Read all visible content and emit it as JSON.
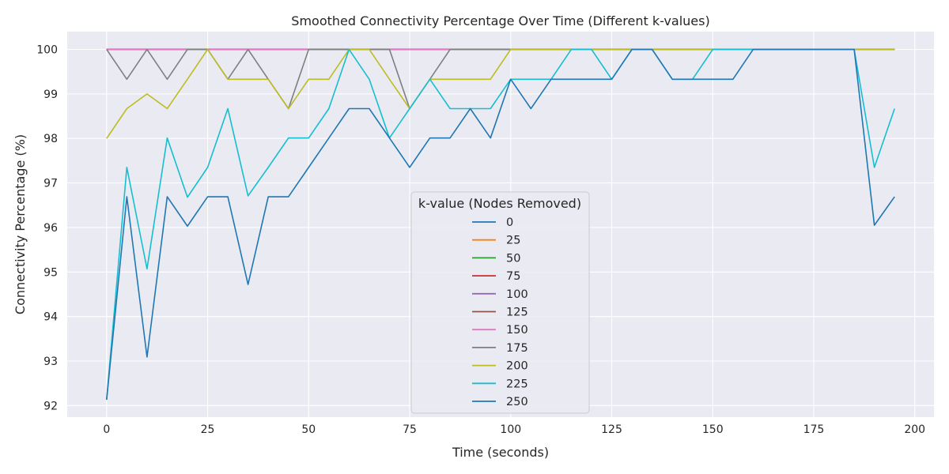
{
  "chart_data": {
    "type": "line",
    "title": "Smoothed Connectivity Percentage Over Time (Different k-values)",
    "xlabel": "Time (seconds)",
    "ylabel": "Connectivity Percentage (%)",
    "xlim": [
      -9.75,
      204.75
    ],
    "ylim": [
      91.74,
      100.4
    ],
    "xticks": [
      0,
      25,
      50,
      75,
      100,
      125,
      150,
      175,
      200
    ],
    "yticks": [
      92,
      93,
      94,
      95,
      96,
      97,
      98,
      99,
      100
    ],
    "grid": true,
    "legend": {
      "title": "k-value (Nodes Removed)",
      "placement": "lower-center"
    },
    "x": [
      0,
      5,
      10,
      15,
      20,
      25,
      30,
      35,
      40,
      45,
      50,
      55,
      60,
      65,
      70,
      75,
      80,
      85,
      90,
      95,
      100,
      105,
      110,
      115,
      120,
      125,
      130,
      135,
      140,
      145,
      150,
      155,
      160,
      165,
      170,
      175,
      180,
      185,
      190,
      195
    ],
    "series": [
      {
        "name": "0",
        "color": "#1f77b4",
        "values": [
          100,
          100,
          100,
          100,
          100,
          100,
          100,
          100,
          100,
          100,
          100,
          100,
          100,
          100,
          100,
          100,
          100,
          100,
          100,
          100,
          100,
          100,
          100,
          100,
          100,
          100,
          100,
          100,
          100,
          100,
          100,
          100,
          100,
          100,
          100,
          100,
          100,
          100,
          100,
          100
        ]
      },
      {
        "name": "25",
        "color": "#ff7f0e",
        "values": [
          100,
          100,
          100,
          100,
          100,
          100,
          100,
          100,
          100,
          100,
          100,
          100,
          100,
          100,
          100,
          100,
          100,
          100,
          100,
          100,
          100,
          100,
          100,
          100,
          100,
          100,
          100,
          100,
          100,
          100,
          100,
          100,
          100,
          100,
          100,
          100,
          100,
          100,
          100,
          100
        ]
      },
      {
        "name": "50",
        "color": "#2ca02c",
        "values": [
          100,
          100,
          100,
          100,
          100,
          100,
          100,
          100,
          100,
          100,
          100,
          100,
          100,
          100,
          100,
          100,
          100,
          100,
          100,
          100,
          100,
          100,
          100,
          100,
          100,
          100,
          100,
          100,
          100,
          100,
          100,
          100,
          100,
          100,
          100,
          100,
          100,
          100,
          100,
          100
        ]
      },
      {
        "name": "75",
        "color": "#d62728",
        "values": [
          100,
          100,
          100,
          100,
          100,
          100,
          100,
          100,
          100,
          100,
          100,
          100,
          100,
          100,
          100,
          100,
          100,
          100,
          100,
          100,
          100,
          100,
          100,
          100,
          100,
          100,
          100,
          100,
          100,
          100,
          100,
          100,
          100,
          100,
          100,
          100,
          100,
          100,
          100,
          100
        ]
      },
      {
        "name": "100",
        "color": "#9467bd",
        "values": [
          100,
          100,
          100,
          100,
          100,
          100,
          100,
          100,
          100,
          100,
          100,
          100,
          100,
          100,
          100,
          100,
          100,
          100,
          100,
          100,
          100,
          100,
          100,
          100,
          100,
          100,
          100,
          100,
          100,
          100,
          100,
          100,
          100,
          100,
          100,
          100,
          100,
          100,
          100,
          100
        ]
      },
      {
        "name": "125",
        "color": "#8c564b",
        "values": [
          100,
          100,
          100,
          100,
          100,
          100,
          100,
          100,
          100,
          100,
          100,
          100,
          100,
          100,
          100,
          100,
          100,
          100,
          100,
          100,
          100,
          100,
          100,
          100,
          100,
          100,
          100,
          100,
          100,
          100,
          100,
          100,
          100,
          100,
          100,
          100,
          100,
          100,
          100,
          100
        ]
      },
      {
        "name": "150",
        "color": "#e377c2",
        "values": [
          100,
          100,
          100,
          100,
          100,
          100,
          100,
          100,
          100,
          100,
          100,
          100,
          100,
          100,
          100,
          100,
          100,
          100,
          100,
          100,
          100,
          100,
          100,
          100,
          100,
          100,
          100,
          100,
          100,
          100,
          100,
          100,
          100,
          100,
          100,
          100,
          100,
          100,
          100,
          100
        ]
      },
      {
        "name": "175",
        "color": "#7f7f7f",
        "values": [
          100,
          99.33,
          100,
          99.33,
          100,
          100,
          99.33,
          100,
          99.33,
          98.67,
          100,
          100,
          100,
          100,
          100,
          98.67,
          99.33,
          100,
          100,
          100,
          100,
          100,
          100,
          100,
          100,
          100,
          100,
          100,
          100,
          100,
          100,
          100,
          100,
          100,
          100,
          100,
          100,
          100,
          100,
          100
        ]
      },
      {
        "name": "200",
        "color": "#bcbd22",
        "values": [
          98,
          98.67,
          99,
          98.67,
          99.33,
          100,
          99.33,
          99.33,
          99.33,
          98.67,
          99.33,
          99.33,
          100,
          100,
          99.33,
          98.67,
          99.33,
          99.33,
          99.33,
          99.33,
          100,
          100,
          100,
          100,
          100,
          100,
          100,
          100,
          100,
          100,
          100,
          100,
          100,
          100,
          100,
          100,
          100,
          100,
          100,
          100
        ]
      },
      {
        "name": "225",
        "color": "#17becf",
        "values": [
          92.13,
          97.35,
          95.07,
          98.01,
          96.68,
          97.35,
          98.67,
          96.71,
          97.35,
          98.01,
          98.01,
          98.67,
          100,
          99.33,
          98.01,
          98.67,
          99.33,
          98.67,
          98.67,
          98.67,
          99.33,
          99.33,
          99.33,
          100,
          100,
          99.33,
          100,
          100,
          99.33,
          99.33,
          100,
          100,
          100,
          100,
          100,
          100,
          100,
          100,
          97.35,
          98.67
        ]
      },
      {
        "name": "250",
        "color": "#1f77b4",
        "values": [
          92.13,
          96.69,
          93.09,
          96.69,
          96.03,
          96.69,
          96.69,
          94.72,
          96.69,
          96.69,
          97.35,
          98.01,
          98.67,
          98.67,
          98.01,
          97.35,
          98.01,
          98.01,
          98.67,
          98.01,
          99.33,
          98.67,
          99.33,
          99.33,
          99.33,
          99.33,
          100,
          100,
          99.33,
          99.33,
          99.33,
          99.33,
          100,
          100,
          100,
          100,
          100,
          100,
          96.05,
          96.69
        ]
      }
    ]
  }
}
